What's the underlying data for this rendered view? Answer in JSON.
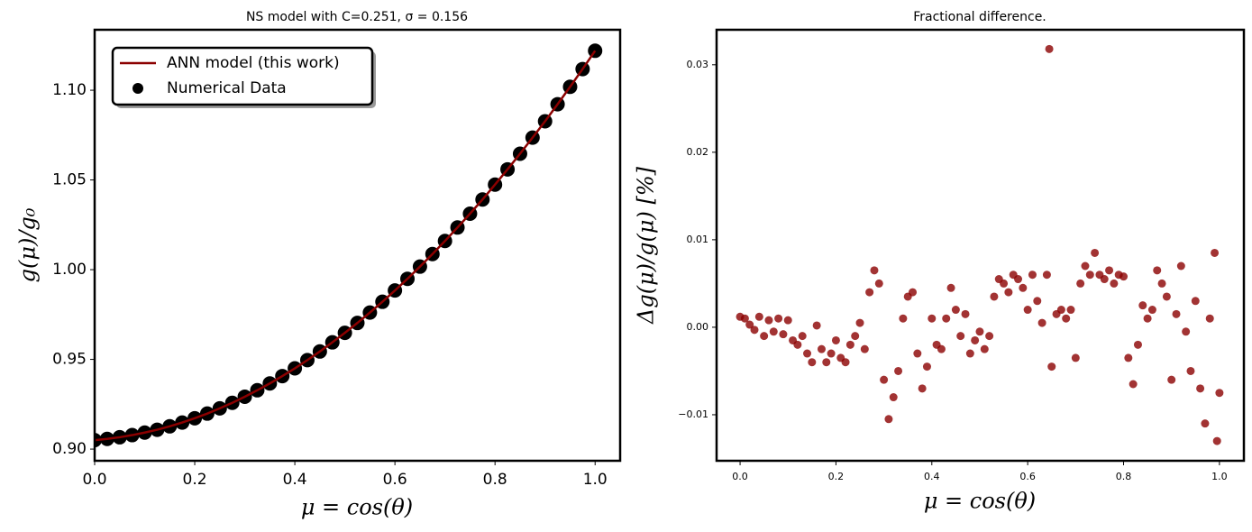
{
  "chart_data": [
    {
      "type": "line",
      "title": "NS model with C=0.251, σ = 0.156",
      "xlabel": "μ = cos(θ)",
      "ylabel": "g(μ)/g₀",
      "x": [
        0,
        0.025,
        0.05,
        0.075,
        0.1,
        0.125,
        0.15,
        0.175,
        0.2,
        0.225,
        0.25,
        0.275,
        0.3,
        0.325,
        0.35,
        0.375,
        0.4,
        0.425,
        0.45,
        0.475,
        0.5,
        0.525,
        0.55,
        0.575,
        0.6,
        0.625,
        0.65,
        0.675,
        0.7,
        0.725,
        0.75,
        0.775,
        0.8,
        0.825,
        0.85,
        0.875,
        0.9,
        0.925,
        0.95,
        0.975,
        1.0
      ],
      "series": [
        {
          "name": "ANN model (this work)",
          "color": "#8b0000",
          "kind": "line",
          "values": [
            0.905,
            0.9057,
            0.9066,
            0.9078,
            0.9092,
            0.9108,
            0.9127,
            0.9148,
            0.9172,
            0.9198,
            0.9227,
            0.9258,
            0.9292,
            0.9328,
            0.9366,
            0.9407,
            0.945,
            0.9496,
            0.9544,
            0.9595,
            0.9648,
            0.9703,
            0.9761,
            0.9821,
            0.9884,
            0.9949,
            1.0017,
            1.0087,
            1.016,
            1.0235,
            1.0312,
            1.0391,
            1.0474,
            1.0559,
            1.0646,
            1.0736,
            1.0827,
            1.0922,
            1.1019,
            1.1118,
            1.122
          ]
        },
        {
          "name": "Numerical Data",
          "color": "#000000",
          "kind": "scatter",
          "values": [
            0.905,
            0.9057,
            0.9066,
            0.9078,
            0.9092,
            0.9108,
            0.9127,
            0.9148,
            0.9172,
            0.9198,
            0.9227,
            0.9258,
            0.9292,
            0.9328,
            0.9366,
            0.9407,
            0.945,
            0.9496,
            0.9544,
            0.9595,
            0.9648,
            0.9703,
            0.9761,
            0.9821,
            0.9884,
            0.9949,
            1.0017,
            1.0087,
            1.016,
            1.0235,
            1.0312,
            1.0391,
            1.0474,
            1.0559,
            1.0646,
            1.0736,
            1.0827,
            1.0922,
            1.1019,
            1.1118,
            1.122
          ]
        }
      ],
      "legend": "upper left",
      "xlim": [
        0,
        1.05
      ],
      "ylim": [
        0.8935,
        1.1337
      ],
      "xticks": [
        {
          "value": 0,
          "label": "0.0"
        },
        0.2,
        0.4,
        0.6,
        0.8,
        {
          "value": 1,
          "label": "1.0"
        }
      ],
      "yticks": [
        {
          "value": 0.9,
          "label": "0.90"
        },
        0.95,
        {
          "value": 1,
          "label": "1.00"
        },
        1.05,
        {
          "value": 1.1,
          "label": "1.10"
        }
      ]
    },
    {
      "type": "scatter",
      "title": "Fractional difference.",
      "xlabel": "μ = cos(θ)",
      "ylabel": "Δg(μ)/g(μ)  [%]",
      "color": "#8b0000",
      "x": [
        0,
        0.01,
        0.02,
        0.03,
        0.04,
        0.05,
        0.06,
        0.07,
        0.08,
        0.09,
        0.1,
        0.11,
        0.12,
        0.13,
        0.14,
        0.15,
        0.16,
        0.17,
        0.18,
        0.19,
        0.2,
        0.21,
        0.22,
        0.23,
        0.24,
        0.25,
        0.26,
        0.27,
        0.28,
        0.29,
        0.3,
        0.31,
        0.32,
        0.33,
        0.34,
        0.35,
        0.36,
        0.37,
        0.38,
        0.39,
        0.4,
        0.41,
        0.42,
        0.43,
        0.44,
        0.45,
        0.46,
        0.47,
        0.48,
        0.49,
        0.5,
        0.51,
        0.52,
        0.53,
        0.54,
        0.55,
        0.56,
        0.57,
        0.58,
        0.59,
        0.6,
        0.61,
        0.62,
        0.63,
        0.64,
        0.65,
        0.66,
        0.67,
        0.68,
        0.69,
        0.7,
        0.71,
        0.72,
        0.73,
        0.74,
        0.75,
        0.76,
        0.77,
        0.78,
        0.79,
        0.8,
        0.81,
        0.82,
        0.83,
        0.84,
        0.85,
        0.86,
        0.87,
        0.88,
        0.89,
        0.9,
        0.91,
        0.92,
        0.93,
        0.94,
        0.95,
        0.96,
        0.97,
        0.98,
        0.99,
        1.0,
        0.645,
        0.995
      ],
      "values": [
        0.0012,
        0.001,
        0.0003,
        -0.0003,
        0.0012,
        -0.001,
        0.0008,
        -0.0005,
        0.001,
        -0.0008,
        0.0008,
        -0.0015,
        -0.002,
        -0.001,
        -0.003,
        -0.004,
        0.0002,
        -0.0025,
        -0.004,
        -0.003,
        -0.0015,
        -0.0035,
        -0.004,
        -0.002,
        -0.001,
        0.0005,
        -0.0025,
        0.004,
        0.0065,
        0.005,
        -0.006,
        -0.0105,
        -0.008,
        -0.005,
        0.001,
        0.0035,
        0.004,
        -0.003,
        -0.007,
        -0.0045,
        0.001,
        -0.002,
        -0.0025,
        0.001,
        0.0045,
        0.002,
        -0.001,
        0.0015,
        -0.003,
        -0.0015,
        -0.0005,
        -0.0025,
        -0.001,
        0.0035,
        0.0055,
        0.005,
        0.004,
        0.006,
        0.0055,
        0.0045,
        0.002,
        0.006,
        0.003,
        0.0005,
        0.006,
        -0.0045,
        0.0015,
        0.002,
        0.001,
        0.002,
        -0.0035,
        0.005,
        0.007,
        0.006,
        0.0085,
        0.006,
        0.0055,
        0.0065,
        0.005,
        0.006,
        0.0058,
        -0.0035,
        -0.0065,
        -0.002,
        0.0025,
        0.001,
        0.002,
        0.0065,
        0.005,
        0.0035,
        -0.006,
        0.0015,
        0.007,
        -0.0005,
        -0.005,
        0.003,
        -0.007,
        -0.011,
        0.001,
        0.0085,
        -0.0075,
        0.0318,
        -0.013
      ],
      "xlim": [
        -0.049,
        1.051
      ],
      "ylim": [
        -0.01526,
        0.034
      ],
      "xticks": [
        {
          "value": 0,
          "label": "0.0"
        },
        0.2,
        0.4,
        0.6,
        0.8,
        {
          "value": 1,
          "label": "1.0"
        }
      ],
      "yticks": [
        {
          "value": -0.01,
          "label": "−0.01"
        },
        {
          "value": 0,
          "label": "0.00"
        },
        0.01,
        0.02,
        0.03
      ]
    }
  ]
}
